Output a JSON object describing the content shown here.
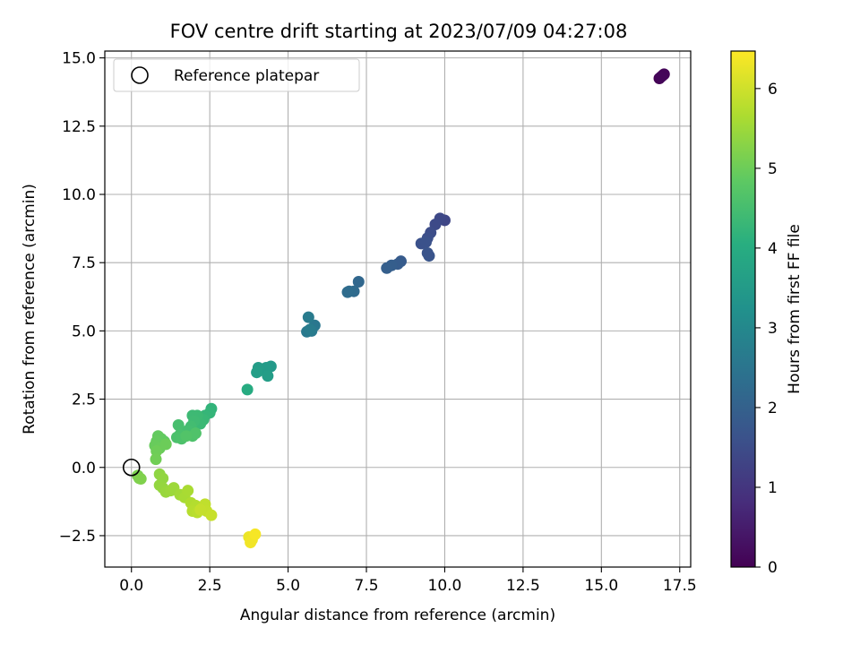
{
  "chart_data": {
    "type": "scatter",
    "title": "FOV centre drift starting at 2023/07/09 04:27:08",
    "xlabel": "Angular distance from reference (arcmin)",
    "ylabel": "Rotation from reference (arcmin)",
    "xlim": [
      -0.85,
      17.85
    ],
    "ylim": [
      -3.65,
      15.25
    ],
    "xticks": [
      0.0,
      2.5,
      5.0,
      7.5,
      10.0,
      12.5,
      15.0,
      17.5
    ],
    "xtick_labels": [
      "0.0",
      "2.5",
      "5.0",
      "7.5",
      "10.0",
      "12.5",
      "15.0",
      "17.5"
    ],
    "yticks": [
      -2.5,
      0.0,
      2.5,
      5.0,
      7.5,
      10.0,
      12.5,
      15.0
    ],
    "ytick_labels": [
      "−2.5",
      "0.0",
      "2.5",
      "5.0",
      "7.5",
      "10.0",
      "12.5",
      "15.0"
    ],
    "grid": true,
    "legend": {
      "placement": "top-left",
      "entries": [
        "Reference platepar"
      ]
    },
    "reference_point": {
      "x": 0.0,
      "y": 0.0
    },
    "colorbar": {
      "label": "Hours from first FF file",
      "colormap": "viridis",
      "range": [
        0,
        6.47
      ],
      "ticks": [
        0,
        1,
        2,
        3,
        4,
        5,
        6
      ],
      "tick_labels": [
        "0",
        "1",
        "2",
        "3",
        "4",
        "5",
        "6"
      ]
    },
    "points": [
      {
        "x": 16.85,
        "y": 14.25,
        "c": 0.02
      },
      {
        "x": 16.95,
        "y": 14.35,
        "c": 0.05
      },
      {
        "x": 17.0,
        "y": 14.4,
        "c": 0.08
      },
      {
        "x": 16.9,
        "y": 14.3,
        "c": 0.1
      },
      {
        "x": 10.0,
        "y": 9.05,
        "c": 1.35
      },
      {
        "x": 9.85,
        "y": 9.12,
        "c": 1.4
      },
      {
        "x": 9.7,
        "y": 8.9,
        "c": 1.45
      },
      {
        "x": 9.55,
        "y": 8.6,
        "c": 1.5
      },
      {
        "x": 9.45,
        "y": 8.4,
        "c": 1.55
      },
      {
        "x": 9.25,
        "y": 8.2,
        "c": 1.6
      },
      {
        "x": 9.4,
        "y": 8.25,
        "c": 1.62
      },
      {
        "x": 9.5,
        "y": 7.75,
        "c": 1.7
      },
      {
        "x": 9.45,
        "y": 7.85,
        "c": 1.68
      },
      {
        "x": 8.6,
        "y": 7.55,
        "c": 1.85
      },
      {
        "x": 8.5,
        "y": 7.45,
        "c": 1.88
      },
      {
        "x": 8.3,
        "y": 7.4,
        "c": 1.92
      },
      {
        "x": 8.15,
        "y": 7.3,
        "c": 1.95
      },
      {
        "x": 7.25,
        "y": 6.8,
        "c": 2.15
      },
      {
        "x": 7.1,
        "y": 6.45,
        "c": 2.22
      },
      {
        "x": 6.95,
        "y": 6.45,
        "c": 2.25
      },
      {
        "x": 6.9,
        "y": 6.42,
        "c": 2.28
      },
      {
        "x": 5.85,
        "y": 5.2,
        "c": 2.55
      },
      {
        "x": 5.75,
        "y": 5.0,
        "c": 2.6
      },
      {
        "x": 5.6,
        "y": 4.97,
        "c": 2.62
      },
      {
        "x": 5.65,
        "y": 5.5,
        "c": 2.65
      },
      {
        "x": 5.7,
        "y": 5.05,
        "c": 2.68
      },
      {
        "x": 4.45,
        "y": 3.7,
        "c": 3.45
      },
      {
        "x": 4.3,
        "y": 3.65,
        "c": 3.5
      },
      {
        "x": 4.1,
        "y": 3.55,
        "c": 3.52
      },
      {
        "x": 4.05,
        "y": 3.65,
        "c": 3.55
      },
      {
        "x": 4.35,
        "y": 3.35,
        "c": 3.58
      },
      {
        "x": 4.0,
        "y": 3.48,
        "c": 3.6
      },
      {
        "x": 3.7,
        "y": 2.85,
        "c": 3.95
      },
      {
        "x": 2.55,
        "y": 2.15,
        "c": 4.2
      },
      {
        "x": 2.5,
        "y": 2.0,
        "c": 4.22
      },
      {
        "x": 2.35,
        "y": 1.9,
        "c": 4.25
      },
      {
        "x": 2.3,
        "y": 1.75,
        "c": 4.3
      },
      {
        "x": 2.2,
        "y": 1.6,
        "c": 4.33
      },
      {
        "x": 2.1,
        "y": 1.9,
        "c": 4.36
      },
      {
        "x": 1.95,
        "y": 1.9,
        "c": 4.38
      },
      {
        "x": 2.0,
        "y": 1.7,
        "c": 4.4
      },
      {
        "x": 1.9,
        "y": 1.5,
        "c": 4.45
      },
      {
        "x": 1.8,
        "y": 1.35,
        "c": 4.48
      },
      {
        "x": 1.65,
        "y": 1.3,
        "c": 4.5
      },
      {
        "x": 1.5,
        "y": 1.55,
        "c": 4.52
      },
      {
        "x": 1.55,
        "y": 1.2,
        "c": 4.55
      },
      {
        "x": 1.45,
        "y": 1.1,
        "c": 4.58
      },
      {
        "x": 1.6,
        "y": 1.05,
        "c": 4.6
      },
      {
        "x": 1.95,
        "y": 1.15,
        "c": 4.62
      },
      {
        "x": 2.05,
        "y": 1.25,
        "c": 4.65
      },
      {
        "x": 1.75,
        "y": 1.15,
        "c": 4.68
      },
      {
        "x": 1.05,
        "y": 0.95,
        "c": 4.85
      },
      {
        "x": 0.95,
        "y": 1.05,
        "c": 4.87
      },
      {
        "x": 0.85,
        "y": 1.15,
        "c": 4.9
      },
      {
        "x": 0.8,
        "y": 0.95,
        "c": 4.92
      },
      {
        "x": 0.75,
        "y": 0.8,
        "c": 4.95
      },
      {
        "x": 0.9,
        "y": 0.7,
        "c": 4.97
      },
      {
        "x": 1.1,
        "y": 0.85,
        "c": 5.0
      },
      {
        "x": 0.8,
        "y": 0.6,
        "c": 5.02
      },
      {
        "x": 0.78,
        "y": 0.3,
        "c": 5.05
      },
      {
        "x": 0.2,
        "y": -0.3,
        "c": 5.15
      },
      {
        "x": 0.25,
        "y": -0.4,
        "c": 5.17
      },
      {
        "x": 0.3,
        "y": -0.42,
        "c": 5.2
      },
      {
        "x": 0.9,
        "y": -0.25,
        "c": 5.35
      },
      {
        "x": 1.0,
        "y": -0.4,
        "c": 5.38
      },
      {
        "x": 0.9,
        "y": -0.65,
        "c": 5.4
      },
      {
        "x": 1.0,
        "y": -0.75,
        "c": 5.42
      },
      {
        "x": 1.1,
        "y": -0.9,
        "c": 5.45
      },
      {
        "x": 1.25,
        "y": -0.85,
        "c": 5.48
      },
      {
        "x": 1.35,
        "y": -0.75,
        "c": 5.5
      },
      {
        "x": 1.55,
        "y": -1.0,
        "c": 5.55
      },
      {
        "x": 1.7,
        "y": -1.1,
        "c": 5.6
      },
      {
        "x": 1.8,
        "y": -0.85,
        "c": 5.62
      },
      {
        "x": 1.9,
        "y": -1.3,
        "c": 5.68
      },
      {
        "x": 2.05,
        "y": -1.4,
        "c": 5.72
      },
      {
        "x": 1.95,
        "y": -1.6,
        "c": 5.75
      },
      {
        "x": 2.1,
        "y": -1.65,
        "c": 5.78
      },
      {
        "x": 2.25,
        "y": -1.5,
        "c": 5.82
      },
      {
        "x": 2.35,
        "y": -1.35,
        "c": 5.85
      },
      {
        "x": 2.4,
        "y": -1.6,
        "c": 5.88
      },
      {
        "x": 2.55,
        "y": -1.75,
        "c": 5.92
      },
      {
        "x": 2.2,
        "y": -1.55,
        "c": 5.9
      },
      {
        "x": 3.75,
        "y": -2.55,
        "c": 6.3
      },
      {
        "x": 3.85,
        "y": -2.65,
        "c": 6.32
      },
      {
        "x": 3.8,
        "y": -2.75,
        "c": 6.35
      },
      {
        "x": 3.95,
        "y": -2.45,
        "c": 6.4
      }
    ]
  }
}
